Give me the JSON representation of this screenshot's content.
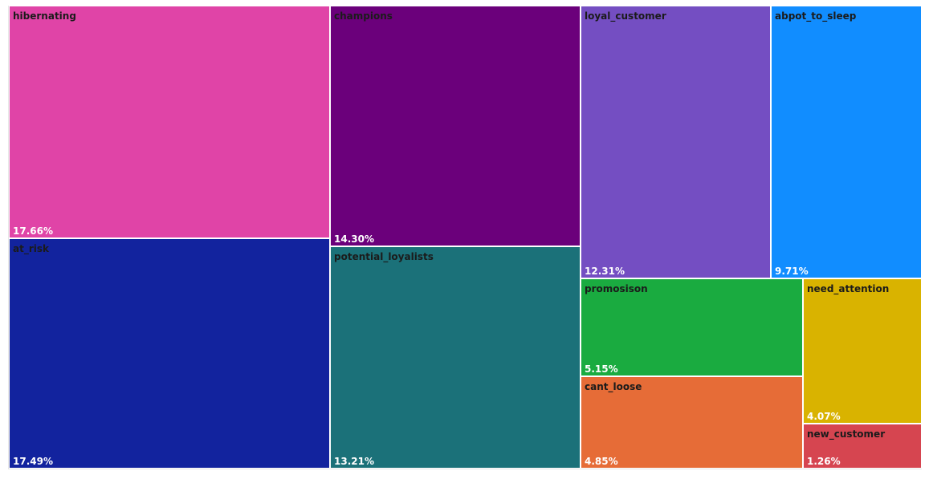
{
  "chart_data": {
    "type": "treemap",
    "title": "",
    "segments": [
      {
        "name": "hibernating",
        "value": 17.66,
        "value_label": "17.66%",
        "color": "#E044A7"
      },
      {
        "name": "at_risk",
        "value": 17.49,
        "value_label": "17.49%",
        "color": "#12239E"
      },
      {
        "name": "champions",
        "value": 14.3,
        "value_label": "14.30%",
        "color": "#6B007B"
      },
      {
        "name": "potential_loyalists",
        "value": 13.21,
        "value_label": "13.21%",
        "color": "#1B7179"
      },
      {
        "name": "loyal_customer",
        "value": 12.31,
        "value_label": "12.31%",
        "color": "#744EC2"
      },
      {
        "name": "abpot_to_sleep",
        "value": 9.71,
        "value_label": "9.71%",
        "color": "#118DFF"
      },
      {
        "name": "promosison",
        "value": 5.15,
        "value_label": "5.15%",
        "color": "#1AAB40"
      },
      {
        "name": "cant_loose",
        "value": 4.85,
        "value_label": "4.85%",
        "color": "#E66C37"
      },
      {
        "name": "need_attention",
        "value": 4.07,
        "value_label": "4.07%",
        "color": "#D9B300"
      },
      {
        "name": "new_customer",
        "value": 1.26,
        "value_label": "1.26%",
        "color": "#D64550"
      }
    ]
  }
}
